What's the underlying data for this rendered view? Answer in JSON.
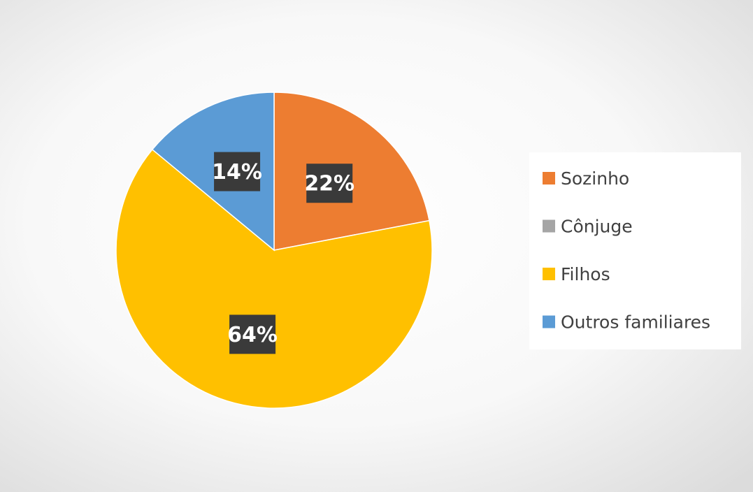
{
  "chart_data": {
    "type": "pie",
    "categories": [
      "Sozinho",
      "Cônjuge",
      "Filhos",
      "Outros familiares"
    ],
    "values": [
      22,
      0,
      64,
      14
    ],
    "value_labels": [
      "22%",
      null,
      "64%",
      "14%"
    ],
    "colors": [
      "#ED7D31",
      "#A5A5A5",
      "#FFC000",
      "#5B9BD5"
    ],
    "legend": "right"
  }
}
